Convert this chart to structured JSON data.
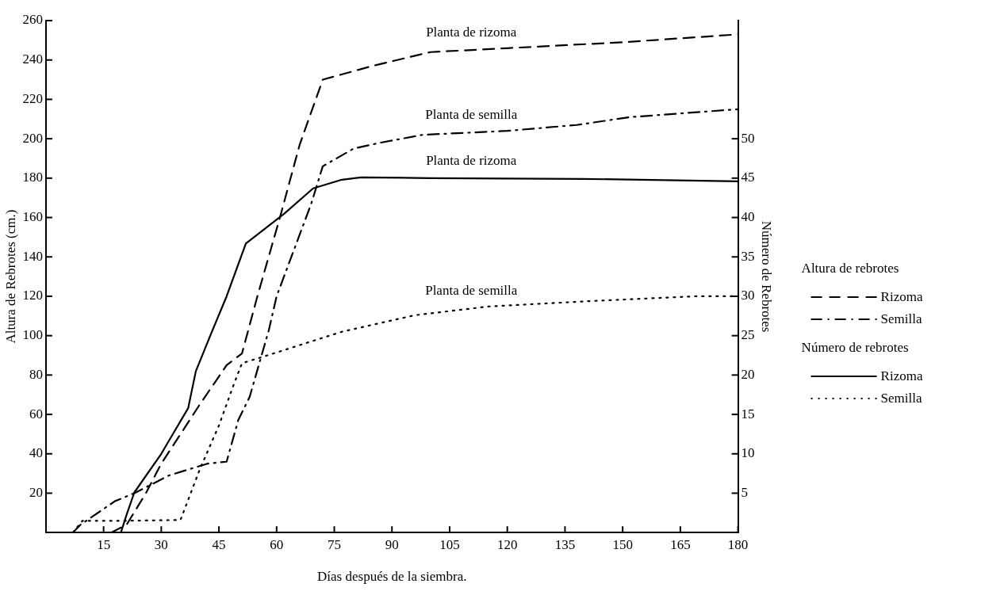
{
  "chart_data": {
    "type": "line",
    "xlabel": "Días después de la siembra.",
    "ylabel": "Altura de Rebrotes (cm.)",
    "y2label": "Número de Rebrotes",
    "xlim": [
      0,
      180
    ],
    "xticks": [
      15,
      30,
      45,
      60,
      75,
      90,
      105,
      120,
      135,
      150,
      165,
      180
    ],
    "ylim": [
      0,
      260
    ],
    "yticks": [
      20,
      40,
      60,
      80,
      100,
      120,
      140,
      160,
      180,
      200,
      220,
      240,
      260
    ],
    "y2lim": [
      0,
      65
    ],
    "y2ticks": [
      5,
      10,
      15,
      20,
      25,
      30,
      35,
      40,
      45,
      50
    ],
    "grid": false,
    "legend": "right",
    "marker": "none",
    "series": [
      {
        "name": "Rizoma",
        "color": "#000000",
        "axis": "y",
        "line_style": "dashed",
        "x": [
          17,
          21,
          26,
          30,
          40,
          47,
          51,
          55,
          61,
          66,
          72,
          85,
          100,
          120,
          150,
          180
        ],
        "values": [
          0,
          4,
          20,
          35,
          65,
          85,
          91,
          120,
          161,
          197,
          230,
          237,
          244,
          246,
          249,
          253
        ]
      },
      {
        "name": "Semilla",
        "color": "#000000",
        "axis": "y",
        "line_style": "dashdot",
        "x": [
          7,
          9,
          18,
          23,
          32,
          37,
          42,
          47,
          50,
          53,
          58,
          60,
          69,
          72,
          80,
          87,
          98,
          120,
          138,
          152,
          180
        ],
        "values": [
          0,
          4,
          16,
          20,
          29,
          32,
          35,
          36,
          57,
          69,
          103,
          120,
          167,
          186,
          195,
          198,
          202,
          204,
          207,
          211,
          215
        ]
      },
      {
        "name": "Rizoma",
        "color": "#000000",
        "axis": "y2",
        "line_style": "solid",
        "x": [
          19.5,
          21,
          23,
          30,
          33,
          37,
          39,
          43,
          47,
          52,
          62,
          69.5,
          77,
          82,
          100,
          140,
          180
        ],
        "values": [
          0,
          2.3,
          5.1,
          10,
          12.5,
          15.8,
          20.5,
          25.3,
          30,
          36.7,
          40.5,
          43.7,
          44.8,
          45.1,
          45,
          44.9,
          44.6
        ]
      },
      {
        "name": "Semilla",
        "color": "#000000",
        "axis": "y2",
        "line_style": "dotted",
        "x": [
          7,
          9.5,
          21,
          35,
          40,
          45,
          49,
          51,
          57,
          66,
          77,
          96,
          115,
          142,
          169,
          180
        ],
        "values": [
          0,
          1.5,
          1.5,
          1.6,
          8,
          13.6,
          19,
          21.5,
          22.4,
          23.8,
          25.5,
          27.6,
          28.7,
          29.4,
          30,
          30
        ]
      }
    ],
    "annotations": [
      "Planta de rizoma",
      "Planta de semilla",
      "Planta de rizoma",
      "Planta de semilla",
      "Altura de rebrotes",
      "Número de rebrotes"
    ]
  }
}
